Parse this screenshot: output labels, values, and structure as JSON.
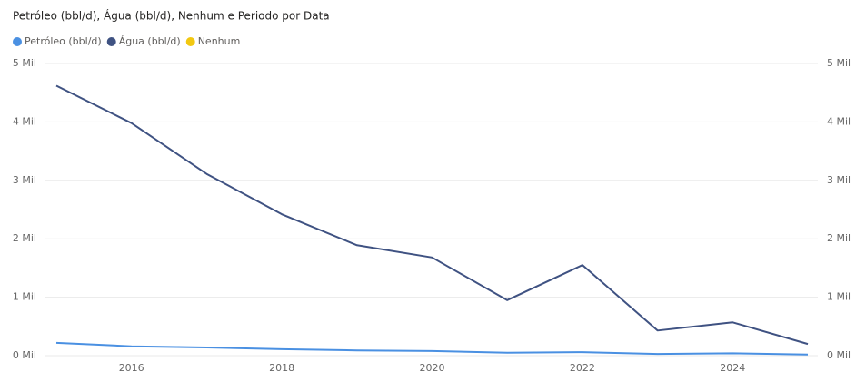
{
  "chart_data": {
    "type": "line",
    "title": "Petróleo (bbl/d), Água (bbl/d), Nenhum e Periodo por Data",
    "x": [
      2015,
      2016,
      2017,
      2018,
      2019,
      2020,
      2021,
      2022,
      2023,
      2024,
      2025
    ],
    "series": [
      {
        "name": "Petróleo (bbl/d)",
        "color": "#4a90e2",
        "values": [
          220,
          160,
          140,
          110,
          90,
          80,
          50,
          60,
          30,
          40,
          20
        ]
      },
      {
        "name": "Água (bbl/d)",
        "color": "#3f5282",
        "values": [
          4620,
          3980,
          3110,
          2420,
          1890,
          1680,
          950,
          1550,
          430,
          570,
          200
        ]
      },
      {
        "name": "Nenhum",
        "color": "#f2c811",
        "values": [
          null,
          null,
          null,
          null,
          null,
          null,
          null,
          null,
          null,
          null,
          null
        ]
      }
    ],
    "xlim": [
      2015,
      2025
    ],
    "xticks": [
      2016,
      2018,
      2020,
      2022,
      2024
    ],
    "ylim": [
      0,
      5000
    ],
    "yticks": [
      {
        "value": 0,
        "label": "0 Mil"
      },
      {
        "value": 1000,
        "label": "1 Mil"
      },
      {
        "value": 2000,
        "label": "2 Mil"
      },
      {
        "value": 3000,
        "label": "3 Mil"
      },
      {
        "value": 4000,
        "label": "4 Mil"
      },
      {
        "value": 5000,
        "label": "5 Mil"
      }
    ],
    "y2lim": [
      0,
      5000
    ],
    "y2ticks": [
      {
        "value": 0,
        "label": "0 Mil"
      },
      {
        "value": 1000,
        "label": "1 Mil"
      },
      {
        "value": 2000,
        "label": "2 Mil"
      },
      {
        "value": 3000,
        "label": "3 Mil"
      },
      {
        "value": 4000,
        "label": "4 Mil"
      },
      {
        "value": 5000,
        "label": "5 Mil"
      }
    ],
    "grid": true,
    "legend": "top-left"
  }
}
